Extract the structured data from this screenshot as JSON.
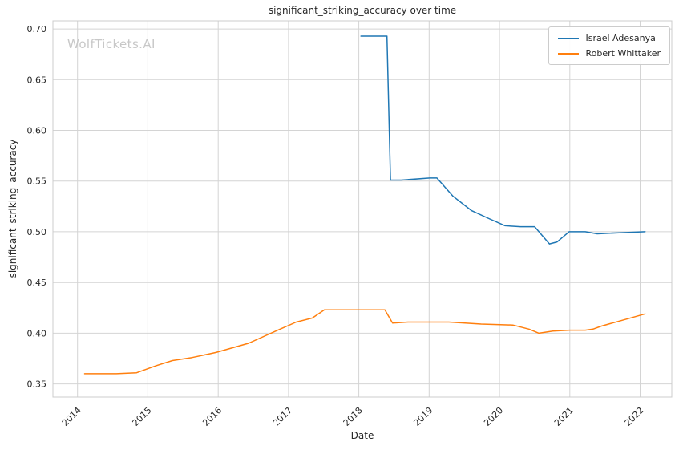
{
  "watermark": "WolfTickets.AI",
  "chart_data": {
    "type": "line",
    "title": "significant_striking_accuracy over time",
    "xlabel": "Date",
    "ylabel": "significant_striking_accuracy",
    "xlim": [
      2013.65,
      2022.45
    ],
    "ylim": [
      0.337,
      0.708
    ],
    "xticks": [
      2014,
      2015,
      2016,
      2017,
      2018,
      2019,
      2020,
      2021,
      2022
    ],
    "yticks": [
      0.35,
      0.4,
      0.45,
      0.5,
      0.55,
      0.6,
      0.65,
      0.7
    ],
    "grid": true,
    "legend_position": "upper right",
    "colors": {
      "grid": "#d4d4d4",
      "spine": "#cccccc",
      "tick_text": "#262626",
      "watermark": "#c8c8c8"
    },
    "series": [
      {
        "name": "Israel Adesanya",
        "color": "#1f77b4",
        "points": [
          [
            2018.03,
            0.693
          ],
          [
            2018.4,
            0.693
          ],
          [
            2018.45,
            0.551
          ],
          [
            2018.6,
            0.551
          ],
          [
            2019.01,
            0.553
          ],
          [
            2019.11,
            0.553
          ],
          [
            2019.34,
            0.535
          ],
          [
            2019.6,
            0.521
          ],
          [
            2019.85,
            0.513
          ],
          [
            2020.08,
            0.506
          ],
          [
            2020.3,
            0.505
          ],
          [
            2020.5,
            0.505
          ],
          [
            2020.71,
            0.488
          ],
          [
            2020.82,
            0.49
          ],
          [
            2020.99,
            0.5
          ],
          [
            2021.22,
            0.5
          ],
          [
            2021.39,
            0.498
          ],
          [
            2021.7,
            0.499
          ],
          [
            2022.07,
            0.5
          ]
        ]
      },
      {
        "name": "Robert Whittaker",
        "color": "#ff7f0e",
        "points": [
          [
            2014.1,
            0.36
          ],
          [
            2014.55,
            0.36
          ],
          [
            2014.84,
            0.361
          ],
          [
            2015.12,
            0.368
          ],
          [
            2015.35,
            0.373
          ],
          [
            2015.63,
            0.376
          ],
          [
            2015.97,
            0.381
          ],
          [
            2016.43,
            0.39
          ],
          [
            2016.88,
            0.404
          ],
          [
            2017.11,
            0.411
          ],
          [
            2017.34,
            0.415
          ],
          [
            2017.51,
            0.423
          ],
          [
            2017.95,
            0.423
          ],
          [
            2018.37,
            0.423
          ],
          [
            2018.48,
            0.41
          ],
          [
            2018.7,
            0.411
          ],
          [
            2019.28,
            0.411
          ],
          [
            2019.74,
            0.409
          ],
          [
            2020.19,
            0.408
          ],
          [
            2020.42,
            0.404
          ],
          [
            2020.56,
            0.4
          ],
          [
            2020.76,
            0.402
          ],
          [
            2021.0,
            0.403
          ],
          [
            2021.22,
            0.403
          ],
          [
            2021.33,
            0.404
          ],
          [
            2021.45,
            0.407
          ],
          [
            2022.07,
            0.419
          ]
        ]
      }
    ]
  }
}
